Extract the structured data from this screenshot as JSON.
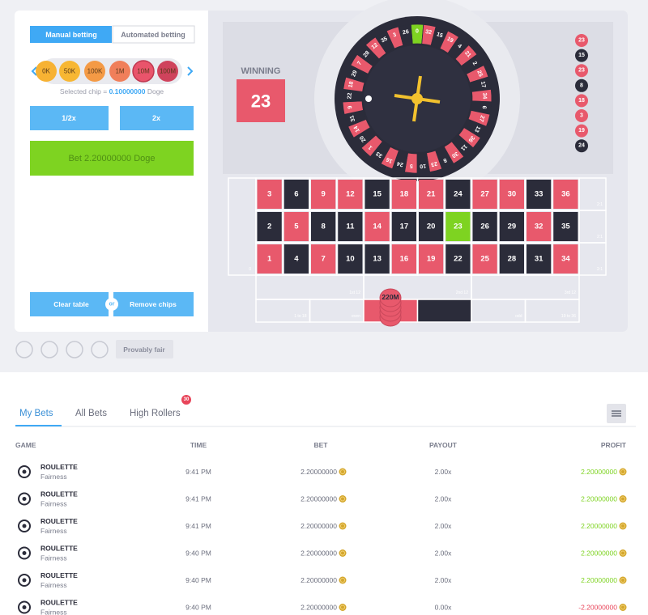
{
  "betting_panel": {
    "tabs": [
      "Manual betting",
      "Automated betting"
    ],
    "chips": [
      {
        "label": "0K",
        "color": "#f7b233"
      },
      {
        "label": "50K",
        "color": "#f7b733"
      },
      {
        "label": "100K",
        "color": "#f49a45"
      },
      {
        "label": "1M",
        "color": "#f07f5a"
      },
      {
        "label": "10M",
        "color": "#e9546b"
      },
      {
        "label": "100M",
        "color": "#cf435c"
      }
    ],
    "selected_chip": {
      "prefix": "Selected chip =",
      "amount": "0.10000000",
      "unit": "Doge"
    },
    "half_button": "1/2x",
    "double_button": "2x",
    "bet_button": "Bet 2.20000000 Doge",
    "clear_button": "Clear table",
    "or_label": "or",
    "remove_button": "Remove chips"
  },
  "wheel": {
    "winning_label": "WINNING",
    "winning_number": "23",
    "numbers": [
      "0",
      "32",
      "15",
      "19",
      "4",
      "21",
      "2",
      "25",
      "17",
      "34",
      "6",
      "27",
      "13",
      "36",
      "11",
      "30",
      "8",
      "23",
      "10",
      "5",
      "24",
      "16",
      "33",
      "1",
      "20",
      "14",
      "31",
      "9",
      "22",
      "18",
      "29",
      "7",
      "28",
      "12",
      "35",
      "3",
      "26"
    ],
    "history": [
      {
        "label": "23",
        "color": "red"
      },
      {
        "label": "15",
        "color": "black"
      },
      {
        "label": "23",
        "color": "red"
      },
      {
        "label": "8",
        "color": "black"
      },
      {
        "label": "18",
        "color": "red"
      },
      {
        "label": "3",
        "color": "red"
      },
      {
        "label": "19",
        "color": "red"
      },
      {
        "label": "24",
        "color": "black"
      }
    ]
  },
  "board": {
    "zero": "0",
    "rows": [
      [
        {
          "label": "3",
          "color": "red"
        },
        {
          "label": "6",
          "color": "black"
        },
        {
          "label": "9",
          "color": "red"
        },
        {
          "label": "12",
          "color": "red"
        },
        {
          "label": "15",
          "color": "black"
        },
        {
          "label": "18",
          "color": "red"
        },
        {
          "label": "21",
          "color": "red"
        },
        {
          "label": "24",
          "color": "black"
        },
        {
          "label": "27",
          "color": "red"
        },
        {
          "label": "30",
          "color": "red"
        },
        {
          "label": "33",
          "color": "black"
        },
        {
          "label": "36",
          "color": "red"
        }
      ],
      [
        {
          "label": "2",
          "color": "black"
        },
        {
          "label": "5",
          "color": "red"
        },
        {
          "label": "8",
          "color": "black"
        },
        {
          "label": "11",
          "color": "black"
        },
        {
          "label": "14",
          "color": "red"
        },
        {
          "label": "17",
          "color": "black"
        },
        {
          "label": "20",
          "color": "black"
        },
        {
          "label": "23",
          "color": "green"
        },
        {
          "label": "26",
          "color": "black"
        },
        {
          "label": "29",
          "color": "black"
        },
        {
          "label": "32",
          "color": "red"
        },
        {
          "label": "35",
          "color": "black"
        }
      ],
      [
        {
          "label": "1",
          "color": "red"
        },
        {
          "label": "4",
          "color": "black"
        },
        {
          "label": "7",
          "color": "red"
        },
        {
          "label": "10",
          "color": "black"
        },
        {
          "label": "13",
          "color": "black"
        },
        {
          "label": "16",
          "color": "red"
        },
        {
          "label": "19",
          "color": "red"
        },
        {
          "label": "22",
          "color": "black"
        },
        {
          "label": "25",
          "color": "red"
        },
        {
          "label": "28",
          "color": "black"
        },
        {
          "label": "31",
          "color": "black"
        },
        {
          "label": "34",
          "color": "red"
        }
      ]
    ],
    "columns": [
      "2:1",
      "2:1",
      "2:1"
    ],
    "dozens": [
      "1st 12",
      "2nd 12",
      "3rd 12"
    ],
    "outside_left": [
      "1 to 18",
      "even"
    ],
    "outside_right": [
      "odd",
      "19 to 36"
    ],
    "chip": "220M"
  },
  "toolbar": {
    "provably_fair": "Provably fair"
  },
  "bets": {
    "tabs": [
      "My Bets",
      "All Bets",
      "High Rollers"
    ],
    "badge": "30",
    "columns": [
      "GAME",
      "TIME",
      "BET",
      "PAYOUT",
      "PROFIT"
    ],
    "rows": [
      {
        "game": "ROULETTE",
        "link": "Fairness",
        "time": "9:41 PM",
        "bet": "2.20000000",
        "payout": "2.00x",
        "profit": "2.20000000"
      },
      {
        "game": "ROULETTE",
        "link": "Fairness",
        "time": "9:41 PM",
        "bet": "2.20000000",
        "payout": "2.00x",
        "profit": "2.20000000"
      },
      {
        "game": "ROULETTE",
        "link": "Fairness",
        "time": "9:41 PM",
        "bet": "2.20000000",
        "payout": "2.00x",
        "profit": "2.20000000"
      },
      {
        "game": "ROULETTE",
        "link": "Fairness",
        "time": "9:40 PM",
        "bet": "2.20000000",
        "payout": "2.00x",
        "profit": "2.20000000"
      },
      {
        "game": "ROULETTE",
        "link": "Fairness",
        "time": "9:40 PM",
        "bet": "2.20000000",
        "payout": "2.00x",
        "profit": "2.20000000"
      },
      {
        "game": "ROULETTE",
        "link": "Fairness",
        "time": "9:40 PM",
        "bet": "2.20000000",
        "payout": "0.00x",
        "profit": "-2.20000000"
      }
    ]
  }
}
